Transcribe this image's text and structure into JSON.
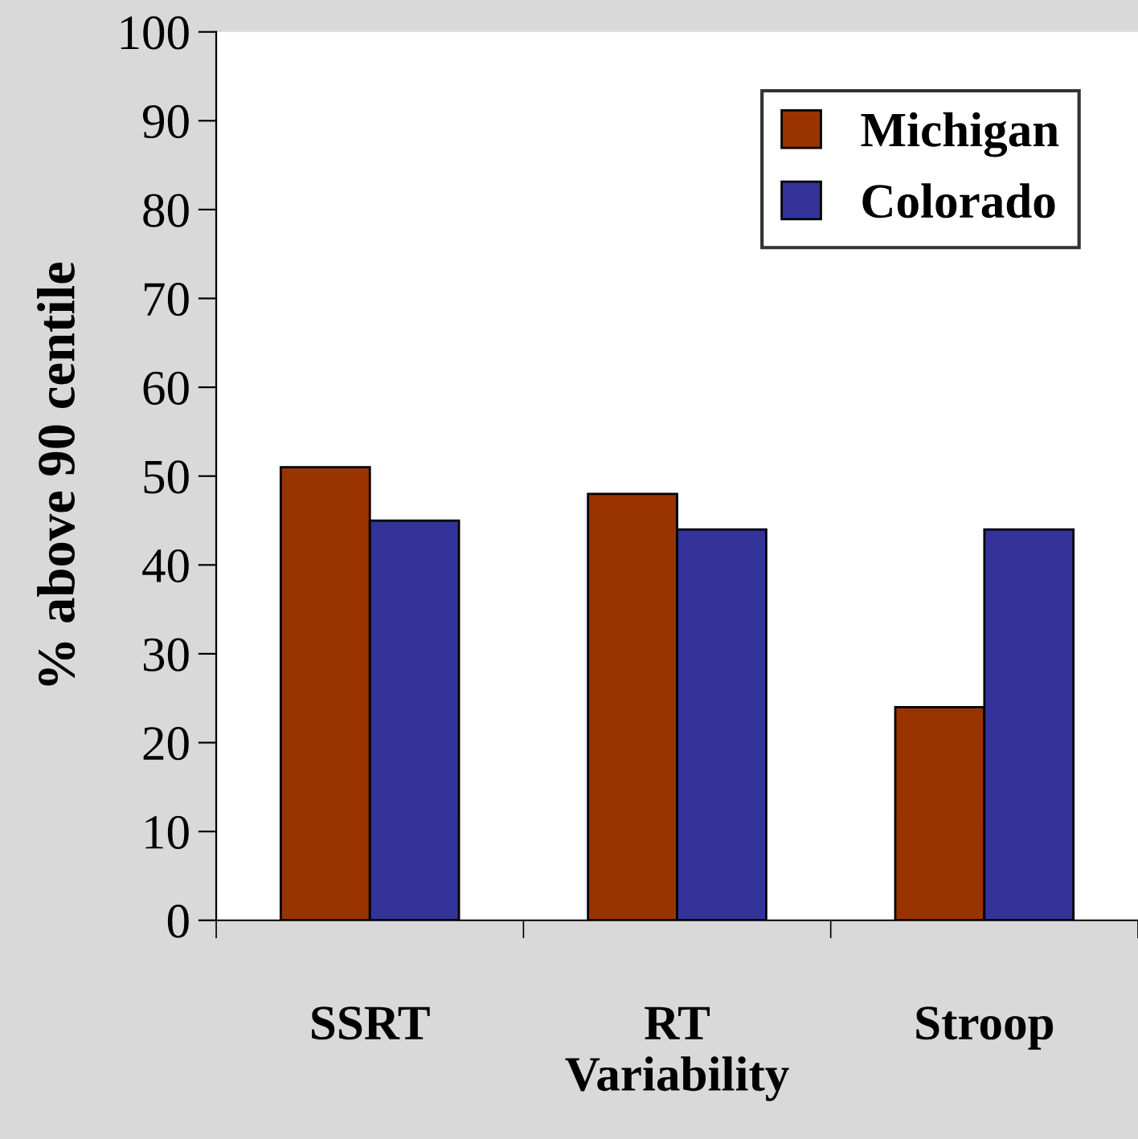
{
  "chart_data": {
    "type": "bar",
    "ylabel": "% above 90 centile",
    "categories": [
      "SSRT",
      "RT\nVariability",
      "Stroop"
    ],
    "series": [
      {
        "name": "Michigan",
        "color": "#993300",
        "values": [
          51,
          48,
          24
        ]
      },
      {
        "name": "Colorado",
        "color": "#333399",
        "values": [
          45,
          44,
          44
        ]
      }
    ],
    "ylim": [
      0,
      100
    ],
    "yticks": [
      0,
      10,
      20,
      30,
      40,
      50,
      60,
      70,
      80,
      90,
      100
    ],
    "grid": false,
    "legend": "top right"
  }
}
